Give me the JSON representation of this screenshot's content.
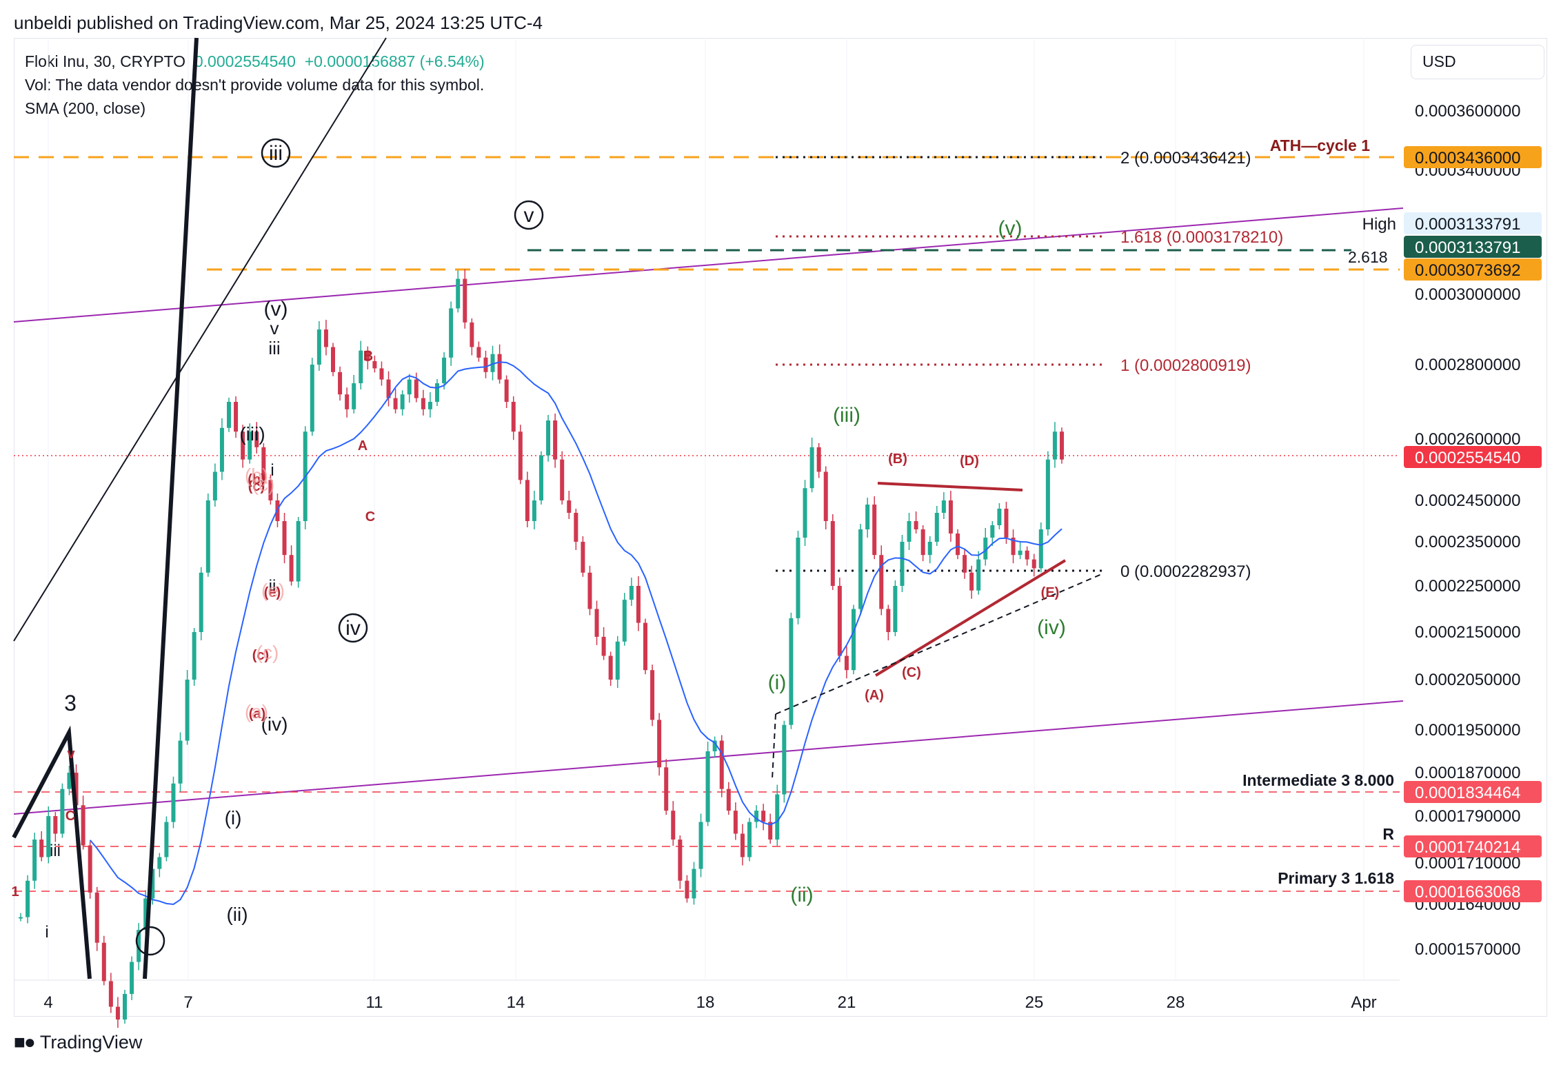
{
  "header": {
    "published": "unbeldi published on TradingView.com, Mar 25, 2024 13:25 UTC-4"
  },
  "legend": {
    "symbol": "Floki Inu, 30, CRYPTO",
    "price": "0.0002554540",
    "change": "+0.0000156887 (+6.54%)",
    "vol_line": "Vol: The data vendor doesn't provide volume data for this symbol.",
    "sma_line": "SMA (200, close)"
  },
  "toolbar": {
    "currency": "USD"
  },
  "footer": {
    "brand": "TradingView"
  },
  "colors": {
    "candle_up": "#22ab94",
    "candle_down": "#d0384f",
    "sma": "#2962ff",
    "channel": "#9c27b0",
    "orange_level": "#f7a21b",
    "red_level": "#f23645",
    "fib_red": "#b22833",
    "green_label": "#2e7d32",
    "dark_green_level": "#1b5e4b"
  },
  "chart_data": {
    "type": "candlestick",
    "interval": "30",
    "x_tick_labels": [
      "4",
      "7",
      "11",
      "14",
      "18",
      "21",
      "25",
      "28",
      "Apr"
    ],
    "y_tick_labels": [
      "0.0003600000",
      "0.0003400000",
      "0.0003000000",
      "0.0002800000",
      "0.0002600000",
      "0.0002450000",
      "0.0002350000",
      "0.0002250000",
      "0.0002150000",
      "0.0002050000",
      "0.0001950000",
      "0.0001870000",
      "0.0001790000",
      "0.0001710000",
      "0.0001640000",
      "0.0001570000"
    ],
    "price_badges": [
      {
        "label": "0.0003436000",
        "bg": "#f7a21b",
        "fg": "#131722"
      },
      {
        "label": "0.0003133791",
        "bg": "#e3f2fd",
        "fg": "#131722",
        "tag": "High"
      },
      {
        "label": "0.0003133791",
        "bg": "#1b5e4b",
        "fg": "#ffffff"
      },
      {
        "label": "0.0003073692",
        "bg": "#f7a21b",
        "fg": "#131722"
      },
      {
        "label": "0.0002554540",
        "bg": "#f23645",
        "fg": "#ffffff"
      },
      {
        "label": "0.0001834464",
        "bg": "#f7525f",
        "fg": "#ffffff"
      },
      {
        "label": "0.0001740214",
        "bg": "#f7525f",
        "fg": "#ffffff"
      },
      {
        "label": "0.0001663068",
        "bg": "#f7525f",
        "fg": "#ffffff"
      }
    ],
    "level_labels": {
      "ath": "ATH—cycle 1",
      "intermediate": "Intermediate 3 8.000",
      "r": "R",
      "primary": "Primary 3 1.618",
      "ext_2618": "2.618"
    },
    "fib_levels": [
      {
        "label": "2 (0.0003436421)",
        "value": 0.0003436421,
        "style": "black-dotted"
      },
      {
        "label": "1.618 (0.0003178210)",
        "value": 0.000317821,
        "style": "red-dotted"
      },
      {
        "label": "1 (0.0002800919)",
        "value": 0.0002800919,
        "style": "red-dotted"
      },
      {
        "label": "0 (0.0002282937)",
        "value": 0.0002282937,
        "style": "black-dotted"
      }
    ],
    "wave_labels": {
      "black": [
        "3",
        "iii",
        "v",
        "(v)",
        "iii",
        "v",
        "(iii)",
        "i",
        "ii",
        "iv",
        "(iv)",
        "(i)",
        "(ii)",
        "i",
        "iii"
      ],
      "green": [
        "(i)",
        "(ii)",
        "(iii)",
        "(iv)",
        "(v)"
      ],
      "red": [
        "(A)",
        "(B)",
        "(C)",
        "(D)",
        "(E)",
        "A",
        "B",
        "C",
        "(a)",
        "(b)",
        "(c)",
        "(c)",
        "(e)",
        "v",
        "C",
        "1"
      ],
      "faded": [
        "(b)",
        "(c)",
        "(e)",
        "(c)",
        "(a)"
      ]
    },
    "prices": [
      0.000162,
      0.000168,
      0.000175,
      0.000172,
      0.000179,
      0.000176,
      0.000184,
      0.000187,
      0.000181,
      0.000174,
      0.000166,
      0.000158,
      0.000152,
      0.000148,
      0.000146,
      0.00015,
      0.000155,
      0.00016,
      0.000165,
      0.00017,
      0.000172,
      0.000178,
      0.000185,
      0.000193,
      0.000205,
      0.000215,
      0.000228,
      0.000245,
      0.000252,
      0.000263,
      0.00027,
      0.000262,
      0.000255,
      0.000262,
      0.000258,
      0.00025,
      0.000245,
      0.00024,
      0.000232,
      0.000226,
      0.00024,
      0.000262,
      0.00028,
      0.00029,
      0.000285,
      0.000278,
      0.000272,
      0.000268,
      0.000275,
      0.000284,
      0.000281,
      0.000279,
      0.000276,
      0.000271,
      0.000268,
      0.000272,
      0.000276,
      0.000271,
      0.000268,
      0.00027,
      0.000275,
      0.000282,
      0.000296,
      0.000305,
      0.000292,
      0.000285,
      0.000282,
      0.000278,
      0.000283,
      0.000276,
      0.00027,
      0.000262,
      0.00025,
      0.00024,
      0.000245,
      0.000256,
      0.000265,
      0.000255,
      0.000245,
      0.000242,
      0.000235,
      0.000228,
      0.00022,
      0.000214,
      0.00021,
      0.000205,
      0.000213,
      0.000222,
      0.000225,
      0.000217,
      0.000207,
      0.000197,
      0.000188,
      0.00018,
      0.000175,
      0.000168,
      0.000165,
      0.00017,
      0.000178,
      0.000191,
      0.000193,
      0.000184,
      0.00018,
      0.000176,
      0.000172,
      0.000178,
      0.00018,
      0.000178,
      0.000175,
      0.000183,
      0.000196,
      0.000218,
      0.000236,
      0.000248,
      0.000258,
      0.000252,
      0.00024,
      0.000225,
      0.00021,
      0.000207,
      0.00022,
      0.000238,
      0.000244,
      0.000232,
      0.00022,
      0.000215,
      0.000225,
      0.000235,
      0.00024,
      0.000238,
      0.000232,
      0.000235,
      0.000242,
      0.000245,
      0.000237,
      0.000232,
      0.000228,
      0.000224,
      0.000231,
      0.000236,
      0.000239,
      0.000243,
      0.000236,
      0.000232,
      0.000233,
      0.000231,
      0.000229,
      0.000238,
      0.000255,
      0.000262,
      0.000255
    ]
  }
}
